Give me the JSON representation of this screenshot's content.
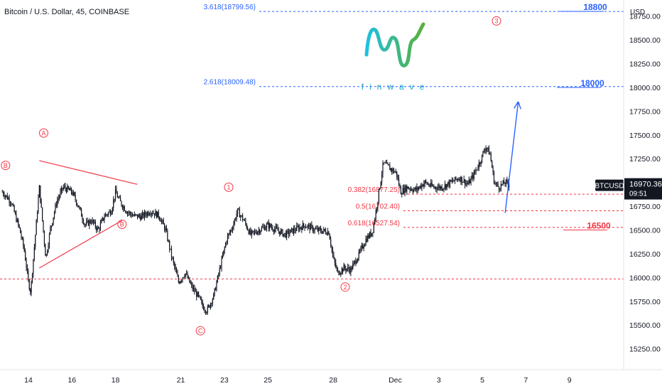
{
  "chart_data": {
    "type": "candlestick",
    "title": "Bitcoin / U.S. Dollar, 45, COINBASE",
    "symbol": "BTCUSD",
    "currency": "USD",
    "last_price": "16970.36",
    "countdown": "09:51",
    "ylim": [
      15030,
      18920
    ],
    "y_ticks": [
      "18750.00",
      "18500.00",
      "18250.00",
      "18000.00",
      "17750.00",
      "17500.00",
      "17250.00",
      "16750.00",
      "16500.00",
      "16250.00",
      "16000.00",
      "15750.00",
      "15500.00",
      "15250.00"
    ],
    "x_ticks": [
      {
        "label": "14",
        "t": 0
      },
      {
        "label": "16",
        "t": 2
      },
      {
        "label": "18",
        "t": 4
      },
      {
        "label": "21",
        "t": 7
      },
      {
        "label": "23",
        "t": 9
      },
      {
        "label": "25",
        "t": 11
      },
      {
        "label": "28",
        "t": 14
      },
      {
        "label": "Dec",
        "t": 16.85
      },
      {
        "label": "3",
        "t": 18.85
      },
      {
        "label": "5",
        "t": 20.85
      },
      {
        "label": "7",
        "t": 22.85
      },
      {
        "label": "9",
        "t": 24.85
      }
    ],
    "price_path": [
      [
        -1.2,
        16900
      ],
      [
        -0.8,
        16800
      ],
      [
        -0.4,
        16500
      ],
      [
        -0.2,
        16300
      ],
      [
        0.0,
        15950
      ],
      [
        0.1,
        15850
      ],
      [
        0.3,
        16400
      ],
      [
        0.5,
        16950
      ],
      [
        0.6,
        16700
      ],
      [
        0.8,
        16200
      ],
      [
        1.0,
        16500
      ],
      [
        1.3,
        16800
      ],
      [
        1.6,
        16950
      ],
      [
        2.0,
        16900
      ],
      [
        2.3,
        16750
      ],
      [
        2.6,
        16550
      ],
      [
        2.9,
        16600
      ],
      [
        3.2,
        16500
      ],
      [
        3.5,
        16650
      ],
      [
        3.8,
        16700
      ],
      [
        4.0,
        16900
      ],
      [
        4.2,
        16800
      ],
      [
        4.5,
        16700
      ],
      [
        4.8,
        16650
      ],
      [
        5.2,
        16640
      ],
      [
        5.6,
        16700
      ],
      [
        6.0,
        16650
      ],
      [
        6.3,
        16500
      ],
      [
        6.6,
        16200
      ],
      [
        6.9,
        15950
      ],
      [
        7.2,
        16050
      ],
      [
        7.5,
        15900
      ],
      [
        7.8,
        15800
      ],
      [
        8.0,
        15700
      ],
      [
        8.2,
        15650
      ],
      [
        8.5,
        15800
      ],
      [
        8.8,
        16100
      ],
      [
        9.1,
        16400
      ],
      [
        9.4,
        16550
      ],
      [
        9.6,
        16700
      ],
      [
        9.9,
        16600
      ],
      [
        10.2,
        16450
      ],
      [
        10.6,
        16500
      ],
      [
        11.0,
        16550
      ],
      [
        11.4,
        16500
      ],
      [
        11.8,
        16450
      ],
      [
        12.2,
        16500
      ],
      [
        12.7,
        16550
      ],
      [
        13.2,
        16500
      ],
      [
        13.8,
        16480
      ],
      [
        14.0,
        16200
      ],
      [
        14.2,
        16050
      ],
      [
        14.5,
        16100
      ],
      [
        14.8,
        16080
      ],
      [
        15.2,
        16250
      ],
      [
        15.5,
        16400
      ],
      [
        15.8,
        16480
      ],
      [
        16.0,
        16750
      ],
      [
        16.1,
        16900
      ],
      [
        16.3,
        17200
      ],
      [
        16.6,
        17150
      ],
      [
        16.9,
        17100
      ],
      [
        17.1,
        16900
      ],
      [
        17.4,
        16950
      ],
      [
        17.8,
        16920
      ],
      [
        18.2,
        17000
      ],
      [
        18.6,
        16950
      ],
      [
        19.0,
        16950
      ],
      [
        19.4,
        17000
      ],
      [
        19.8,
        17050
      ],
      [
        20.2,
        16980
      ],
      [
        20.5,
        17100
      ],
      [
        20.8,
        17250
      ],
      [
        21.0,
        17380
      ],
      [
        21.2,
        17300
      ],
      [
        21.4,
        17000
      ],
      [
        21.6,
        16950
      ],
      [
        21.9,
        17000
      ],
      [
        22.1,
        16970
      ]
    ],
    "fib_levels": [
      {
        "label": "3.618(18799.56)",
        "value": 18799.56
      },
      {
        "label": "2.618(18009.48)",
        "value": 18009.48
      },
      {
        "label": "0.382(16877.25)",
        "value": 16877.25
      },
      {
        "label": "0.5(16702.40)",
        "value": 16702.4
      },
      {
        "label": "0.618(16527.54)",
        "value": 16527.54
      }
    ],
    "support_level": 15985,
    "target_labels": [
      {
        "label": "18800",
        "value": 18800
      },
      {
        "label": "18000",
        "value": 18000
      },
      {
        "label": "16500",
        "value": 16500
      }
    ],
    "wave_labels": [
      {
        "label": "B",
        "t": -1.05,
        "value": 17180
      },
      {
        "label": "A",
        "t": 0.7,
        "value": 17520
      },
      {
        "label": "B",
        "t": 4.3,
        "value": 16560
      },
      {
        "label": "C",
        "t": 7.9,
        "value": 15440
      },
      {
        "label": "1",
        "t": 9.2,
        "value": 16950
      },
      {
        "label": "2",
        "t": 14.55,
        "value": 15900
      },
      {
        "label": "3",
        "t": 21.5,
        "value": 18700
      }
    ],
    "annotations": {
      "triangle_upper": [
        [
          0.5,
          17230
        ],
        [
          5.0,
          16980
        ]
      ],
      "triangle_lower": [
        [
          0.5,
          16100
        ],
        [
          4.3,
          16600
        ]
      ],
      "projection_arrow": [
        [
          21.9,
          16680
        ],
        [
          22.5,
          17850
        ]
      ]
    },
    "colors": {
      "candle": "#131722",
      "fib": "#2962ff",
      "red": "#f23645",
      "price_badge": "#131722",
      "grid_border": "#e0e3eb",
      "logo_gradient_start": "#1fc0e0",
      "logo_gradient_end": "#5ab03a",
      "logo_text": "#1aa7c8"
    }
  },
  "logo": {
    "text": "finwave"
  }
}
